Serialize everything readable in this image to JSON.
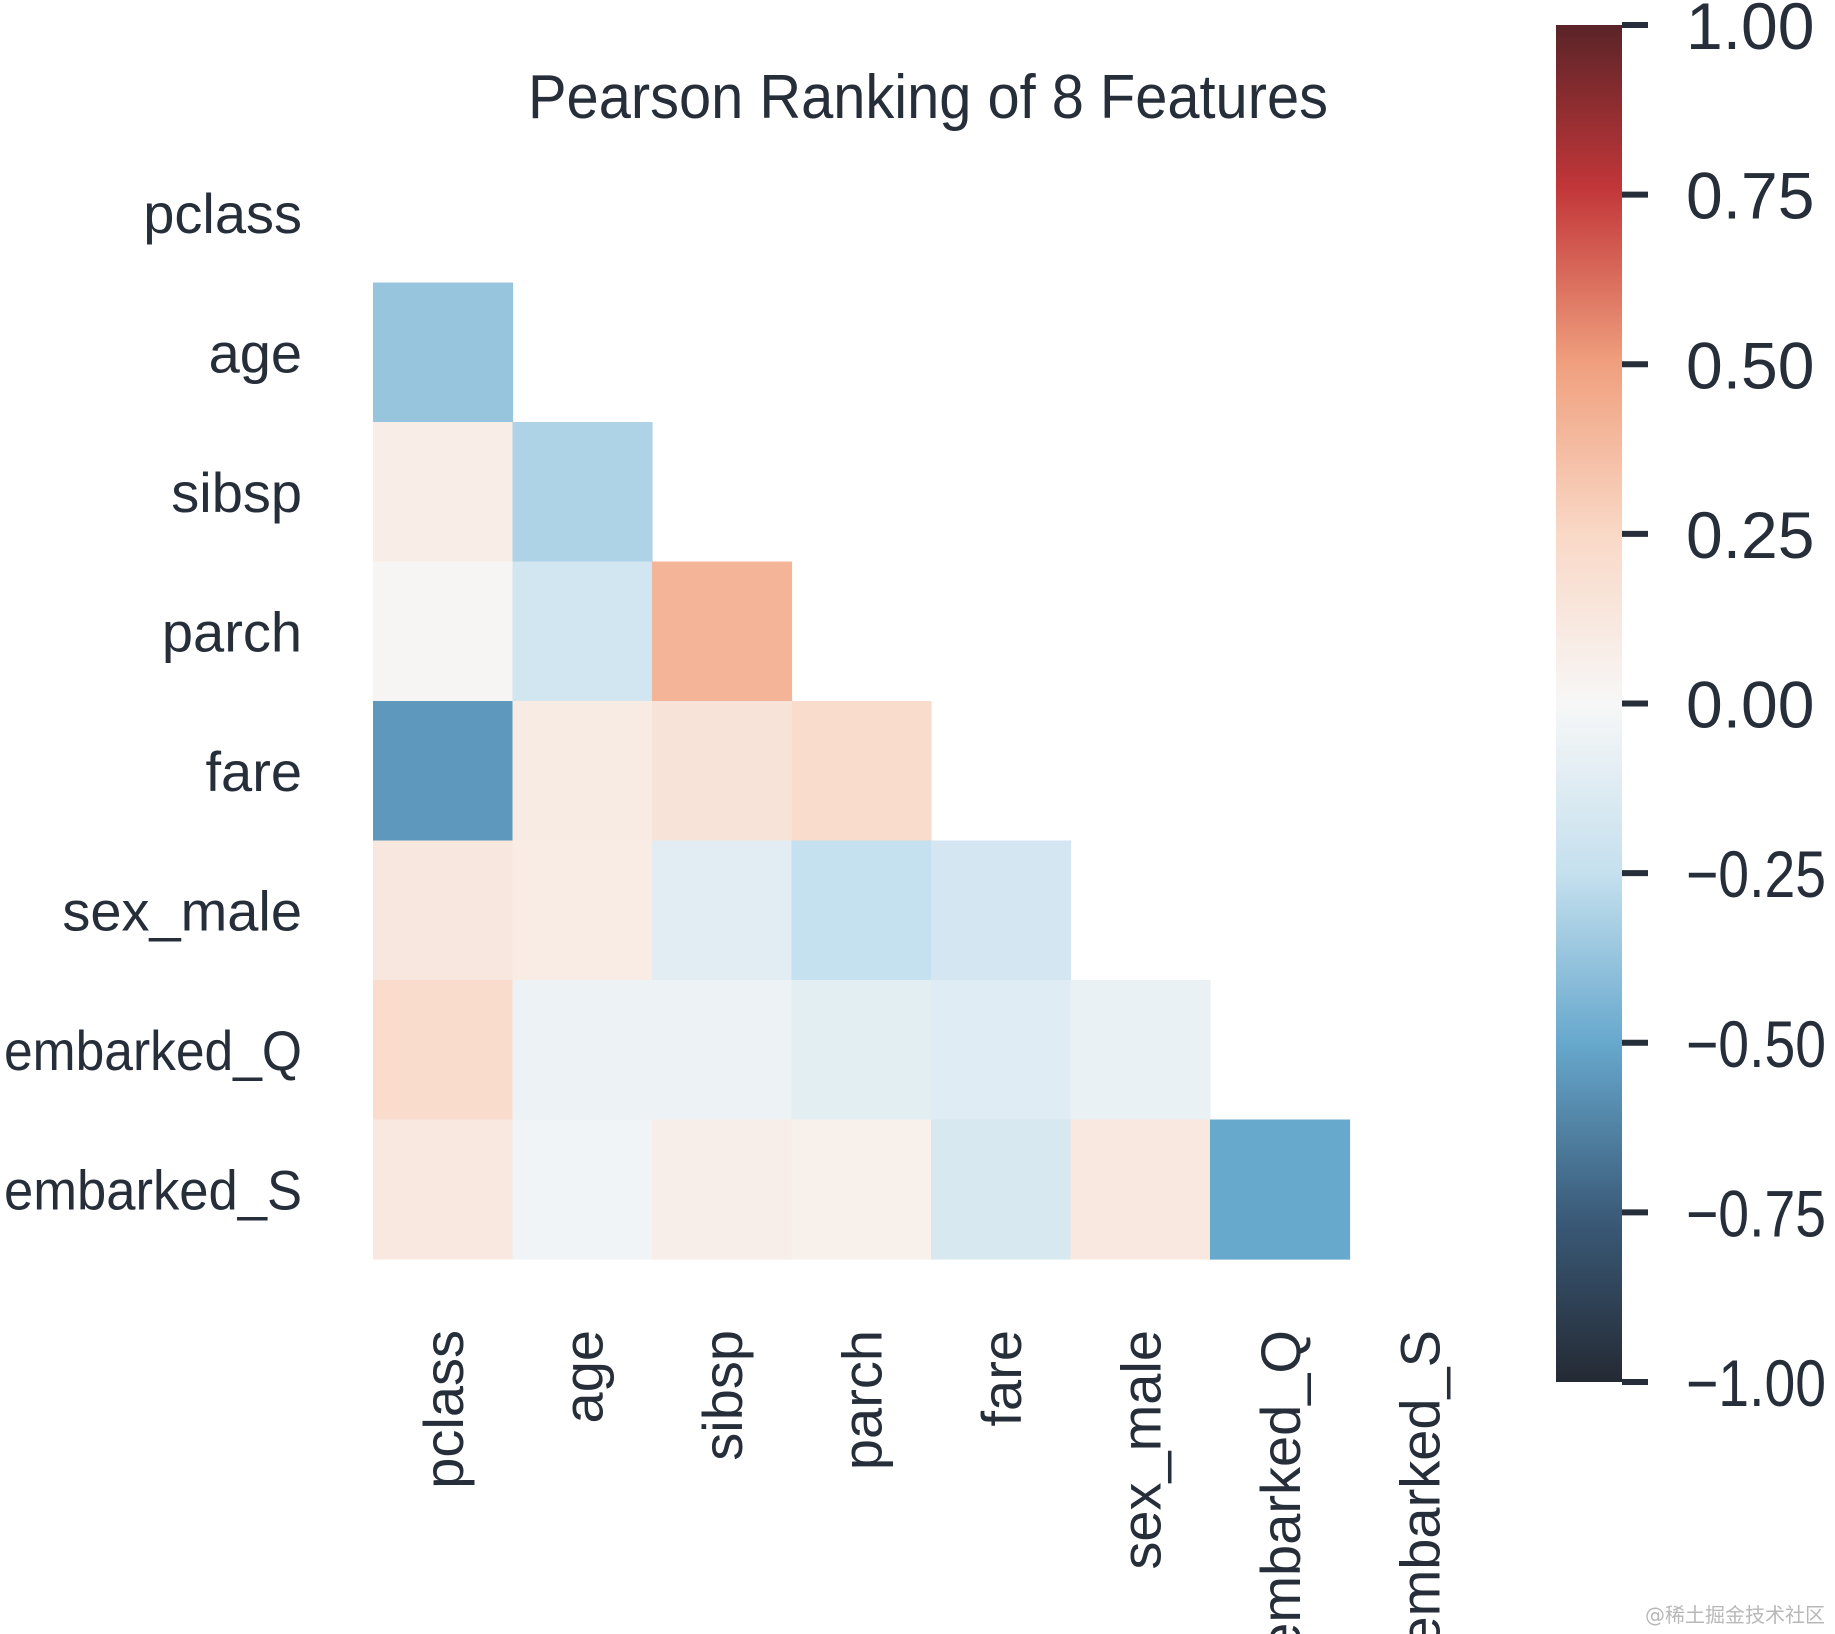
{
  "chart_data": {
    "type": "heatmap",
    "title": "Pearson Ranking of 8 Features",
    "features": [
      "pclass",
      "age",
      "sibsp",
      "parch",
      "fare",
      "sex_male",
      "embarked_Q",
      "embarked_S"
    ],
    "mask": "upper-triangle-and-diagonal",
    "values": [
      [
        null,
        null,
        null,
        null,
        null,
        null,
        null,
        null
      ],
      [
        -0.37,
        null,
        null,
        null,
        null,
        null,
        null,
        null
      ],
      [
        0.08,
        -0.31,
        null,
        null,
        null,
        null,
        null,
        null
      ],
      [
        0.02,
        -0.19,
        0.41,
        null,
        null,
        null,
        null,
        null
      ],
      [
        -0.55,
        0.1,
        0.16,
        0.22,
        null,
        null,
        null,
        null
      ],
      [
        0.13,
        0.09,
        -0.11,
        -0.25,
        -0.18,
        null,
        null,
        null
      ],
      [
        0.22,
        -0.05,
        -0.05,
        -0.1,
        -0.12,
        -0.07,
        null,
        null
      ],
      [
        0.12,
        -0.03,
        0.07,
        0.06,
        -0.16,
        0.12,
        -0.5,
        null
      ]
    ],
    "colorbar": {
      "vmin": -1.0,
      "vmax": 1.0,
      "colormap": "RdBu_r",
      "ticks": [
        "1.00",
        "0.75",
        "0.50",
        "0.25",
        "0.00",
        "−0.25",
        "−0.50",
        "−0.75",
        "−1.00"
      ]
    }
  },
  "watermark": "@稀土掘金技术社区",
  "colors": {
    "text": "#262e3a",
    "background": "#ffffff"
  }
}
